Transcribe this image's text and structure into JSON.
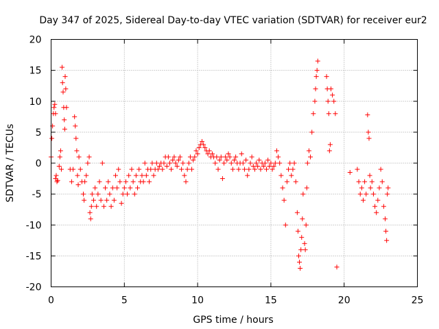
{
  "chart_data": {
    "type": "scatter",
    "title": "Day 347 of 2025, Sidereal Day-to-day VTEC variation (SDTVAR) for receiver eur2",
    "xlabel": "GPS time / hours",
    "ylabel": "SDTVAR / TECUs",
    "xlim": [
      0,
      25
    ],
    "ylim": [
      -20,
      20
    ],
    "xticks": [
      0,
      5,
      10,
      15,
      20,
      25
    ],
    "yticks": [
      -20,
      -15,
      -10,
      -5,
      0,
      5,
      10,
      15,
      20
    ],
    "grid": true,
    "marker": "+",
    "color": "#ff0000",
    "series": [
      {
        "name": "SDTVAR",
        "points": [
          [
            0.0,
            1
          ],
          [
            0.05,
            4
          ],
          [
            0.1,
            6
          ],
          [
            0.15,
            8
          ],
          [
            0.2,
            9
          ],
          [
            0.25,
            9.5
          ],
          [
            0.3,
            8
          ],
          [
            0.3,
            -2.5
          ],
          [
            0.35,
            -2
          ],
          [
            0.4,
            -3
          ],
          [
            0.45,
            -2.8
          ],
          [
            0.55,
            -0.5
          ],
          [
            0.6,
            1
          ],
          [
            0.65,
            2
          ],
          [
            0.7,
            -1
          ],
          [
            0.75,
            15.5
          ],
          [
            0.78,
            13
          ],
          [
            0.82,
            11.5
          ],
          [
            0.86,
            9
          ],
          [
            0.9,
            7
          ],
          [
            0.93,
            5.5
          ],
          [
            0.96,
            14
          ],
          [
            1.0,
            12
          ],
          [
            1.05,
            9
          ],
          [
            1.3,
            -1
          ],
          [
            1.4,
            -3
          ],
          [
            1.5,
            -1
          ],
          [
            1.6,
            7.5
          ],
          [
            1.65,
            6
          ],
          [
            1.7,
            4
          ],
          [
            1.75,
            2
          ],
          [
            1.8,
            -2
          ],
          [
            1.85,
            -3.5
          ],
          [
            1.9,
            1
          ],
          [
            2.0,
            -1
          ],
          [
            2.1,
            -3
          ],
          [
            2.2,
            -5
          ],
          [
            2.25,
            -6
          ],
          [
            2.3,
            -3
          ],
          [
            2.4,
            -2
          ],
          [
            2.5,
            0
          ],
          [
            2.6,
            1
          ],
          [
            2.65,
            -8
          ],
          [
            2.7,
            -9
          ],
          [
            2.75,
            -7
          ],
          [
            2.8,
            -5
          ],
          [
            2.9,
            -6
          ],
          [
            3.0,
            -4
          ],
          [
            3.1,
            -7
          ],
          [
            3.2,
            -5
          ],
          [
            3.3,
            -3
          ],
          [
            3.4,
            -6
          ],
          [
            3.5,
            0
          ],
          [
            3.6,
            -7
          ],
          [
            3.7,
            -4
          ],
          [
            3.8,
            -6
          ],
          [
            3.9,
            -3
          ],
          [
            4.0,
            -5
          ],
          [
            4.1,
            -7
          ],
          [
            4.2,
            -4
          ],
          [
            4.3,
            -6
          ],
          [
            4.4,
            -2
          ],
          [
            4.5,
            -4
          ],
          [
            4.6,
            -1
          ],
          [
            4.7,
            -3
          ],
          [
            4.8,
            -6.5
          ],
          [
            4.9,
            -5
          ],
          [
            5.0,
            -4
          ],
          [
            5.1,
            -3
          ],
          [
            5.2,
            -5
          ],
          [
            5.3,
            -2
          ],
          [
            5.4,
            -4
          ],
          [
            5.5,
            -1
          ],
          [
            5.6,
            -3
          ],
          [
            5.7,
            -5
          ],
          [
            5.8,
            -2
          ],
          [
            5.9,
            -4
          ],
          [
            6.0,
            -1
          ],
          [
            6.1,
            -3
          ],
          [
            6.2,
            -2
          ],
          [
            6.3,
            -3
          ],
          [
            6.4,
            0
          ],
          [
            6.5,
            -2
          ],
          [
            6.6,
            -1
          ],
          [
            6.7,
            -3
          ],
          [
            6.8,
            -1
          ],
          [
            6.9,
            0
          ],
          [
            7.0,
            -2
          ],
          [
            7.1,
            -1
          ],
          [
            7.2,
            0
          ],
          [
            7.3,
            -1
          ],
          [
            7.4,
            -0.5
          ],
          [
            7.5,
            0
          ],
          [
            7.6,
            -1
          ],
          [
            7.7,
            0
          ],
          [
            7.8,
            1
          ],
          [
            7.9,
            -0.5
          ],
          [
            8.0,
            1
          ],
          [
            8.1,
            0
          ],
          [
            8.2,
            -1
          ],
          [
            8.3,
            0.5
          ],
          [
            8.4,
            1
          ],
          [
            8.5,
            0
          ],
          [
            8.6,
            -0.5
          ],
          [
            8.7,
            0.5
          ],
          [
            8.8,
            1
          ],
          [
            8.9,
            -1
          ],
          [
            9.0,
            0
          ],
          [
            9.1,
            -2
          ],
          [
            9.2,
            -3
          ],
          [
            9.3,
            -1
          ],
          [
            9.4,
            0
          ],
          [
            9.5,
            1
          ],
          [
            9.6,
            -1
          ],
          [
            9.7,
            0.5
          ],
          [
            9.8,
            1
          ],
          [
            9.9,
            2
          ],
          [
            10.0,
            1.5
          ],
          [
            10.1,
            2.5
          ],
          [
            10.2,
            3
          ],
          [
            10.3,
            3.5
          ],
          [
            10.4,
            3
          ],
          [
            10.5,
            2.5
          ],
          [
            10.6,
            2
          ],
          [
            10.7,
            1.5
          ],
          [
            10.8,
            2
          ],
          [
            10.9,
            1
          ],
          [
            11.0,
            1.5
          ],
          [
            11.1,
            1
          ],
          [
            11.2,
            0
          ],
          [
            11.3,
            1
          ],
          [
            11.4,
            -1
          ],
          [
            11.5,
            0.5
          ],
          [
            11.6,
            1
          ],
          [
            11.7,
            -2.5
          ],
          [
            11.8,
            0
          ],
          [
            11.9,
            1
          ],
          [
            12.0,
            0.5
          ],
          [
            12.1,
            1.5
          ],
          [
            12.2,
            1
          ],
          [
            12.3,
            0
          ],
          [
            12.4,
            -1
          ],
          [
            12.5,
            0.5
          ],
          [
            12.6,
            1
          ],
          [
            12.7,
            0
          ],
          [
            12.8,
            -1
          ],
          [
            12.9,
            0
          ],
          [
            13.0,
            1.5
          ],
          [
            13.1,
            0
          ],
          [
            13.2,
            -1
          ],
          [
            13.3,
            0.5
          ],
          [
            13.4,
            -2
          ],
          [
            13.5,
            -1
          ],
          [
            13.6,
            0
          ],
          [
            13.7,
            1
          ],
          [
            13.8,
            -0.5
          ],
          [
            13.9,
            -1
          ],
          [
            14.0,
            0
          ],
          [
            14.1,
            -0.5
          ],
          [
            14.2,
            0.5
          ],
          [
            14.3,
            -1
          ],
          [
            14.4,
            0
          ],
          [
            14.5,
            -0.5
          ],
          [
            14.6,
            0
          ],
          [
            14.7,
            -1
          ],
          [
            14.8,
            0.5
          ],
          [
            14.9,
            -0.5
          ],
          [
            15.0,
            0
          ],
          [
            15.1,
            -1
          ],
          [
            15.2,
            -0.5
          ],
          [
            15.3,
            0
          ],
          [
            15.4,
            2
          ],
          [
            15.5,
            1
          ],
          [
            15.6,
            0
          ],
          [
            15.7,
            -2
          ],
          [
            15.8,
            -4
          ],
          [
            15.9,
            -6
          ],
          [
            16.0,
            -10
          ],
          [
            16.1,
            -3
          ],
          [
            16.2,
            -1
          ],
          [
            16.3,
            0
          ],
          [
            16.4,
            -2
          ],
          [
            16.5,
            -1
          ],
          [
            16.6,
            0
          ],
          [
            16.7,
            -3
          ],
          [
            16.8,
            -8
          ],
          [
            16.85,
            -11
          ],
          [
            16.9,
            -15
          ],
          [
            16.95,
            -16
          ],
          [
            17.0,
            -17
          ],
          [
            17.05,
            -14
          ],
          [
            17.1,
            -12
          ],
          [
            17.15,
            -9
          ],
          [
            17.2,
            -5
          ],
          [
            17.3,
            -13
          ],
          [
            17.35,
            -14
          ],
          [
            17.4,
            -10
          ],
          [
            17.45,
            -4
          ],
          [
            17.5,
            0
          ],
          [
            17.6,
            2
          ],
          [
            17.7,
            1
          ],
          [
            17.8,
            5
          ],
          [
            17.9,
            8
          ],
          [
            18.0,
            10
          ],
          [
            18.05,
            12
          ],
          [
            18.1,
            14
          ],
          [
            18.15,
            15
          ],
          [
            18.2,
            16.5
          ],
          [
            18.8,
            14
          ],
          [
            18.85,
            12
          ],
          [
            18.9,
            10
          ],
          [
            18.95,
            8
          ],
          [
            19.0,
            2
          ],
          [
            19.05,
            3
          ],
          [
            19.1,
            12
          ],
          [
            19.2,
            11
          ],
          [
            19.3,
            10
          ],
          [
            19.4,
            8
          ],
          [
            19.5,
            -16.8
          ],
          [
            20.4,
            -1.5
          ],
          [
            20.9,
            -1
          ],
          [
            21.0,
            -3
          ],
          [
            21.1,
            -5
          ],
          [
            21.2,
            -4
          ],
          [
            21.3,
            -6
          ],
          [
            21.4,
            -3
          ],
          [
            21.5,
            -5
          ],
          [
            21.6,
            7.8
          ],
          [
            21.65,
            5
          ],
          [
            21.7,
            4
          ],
          [
            21.75,
            -2
          ],
          [
            21.8,
            -4
          ],
          [
            21.9,
            -3
          ],
          [
            22.0,
            -5
          ],
          [
            22.1,
            -7
          ],
          [
            22.2,
            -8
          ],
          [
            22.3,
            -6
          ],
          [
            22.4,
            -4
          ],
          [
            22.5,
            -1
          ],
          [
            22.6,
            -3
          ],
          [
            22.7,
            -7
          ],
          [
            22.8,
            -9
          ],
          [
            22.85,
            -11
          ],
          [
            22.9,
            -12.5
          ],
          [
            22.95,
            -5
          ],
          [
            23.0,
            -4
          ]
        ]
      }
    ]
  }
}
